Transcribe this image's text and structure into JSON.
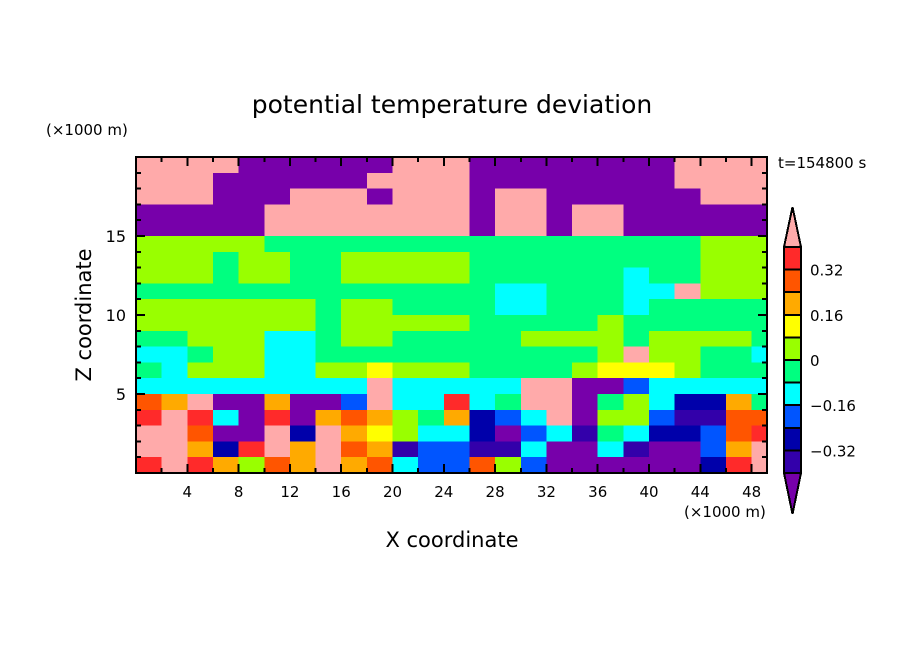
{
  "chart_data": {
    "type": "heatmap",
    "title": "potential temperature deviation",
    "xlabel": "X coordinate",
    "ylabel": "Z coordinate",
    "x_unit": "(×1000 m)",
    "y_unit": "(×1000 m)",
    "annotation": "t=154800 s",
    "xlim": [
      0,
      49.2
    ],
    "ylim": [
      0,
      20
    ],
    "xticks": [
      4,
      8,
      12,
      16,
      20,
      24,
      28,
      32,
      36,
      40,
      44,
      48
    ],
    "yticks": [
      5,
      10,
      15
    ],
    "levels": [
      -0.4,
      -0.32,
      -0.24,
      -0.16,
      -0.08,
      0,
      0.08,
      0.16,
      0.24,
      0.32,
      0.4
    ],
    "colors": [
      "#7700aa",
      "#3300aa",
      "#0000aa",
      "#0055ff",
      "#00ffff",
      "#00ff80",
      "#99ff00",
      "#ffff00",
      "#ffaa00",
      "#ff5500",
      "#ff2a2a",
      "#ffaaaa"
    ],
    "colorbar": {
      "labels": [
        "0.32",
        "0.16",
        "0",
        "−0.16",
        "−0.32"
      ],
      "label_values": [
        0.32,
        0.16,
        0,
        -0.16,
        -0.32
      ],
      "extend": "both"
    },
    "x_cell_size": 2,
    "z_cell_size": 1,
    "x_centers": [
      1,
      3,
      5,
      7,
      9,
      11,
      13,
      15,
      17,
      19,
      21,
      23,
      25,
      27,
      29,
      31,
      33,
      35,
      37,
      39,
      41,
      43,
      45,
      47,
      49
    ],
    "z_centers": [
      19.5,
      18.5,
      17.5,
      16.5,
      15.5,
      14.5,
      13.5,
      12.5,
      11.5,
      10.5,
      9.5,
      8.5,
      7.5,
      6.5,
      5.5,
      4.5,
      3.5,
      2.5,
      1.5,
      0.5
    ],
    "values": [
      [
        0.45,
        0.45,
        0.45,
        0.45,
        -0.45,
        -0.45,
        -0.45,
        -0.45,
        -0.45,
        -0.45,
        0.45,
        0.45,
        0.45,
        -0.45,
        -0.45,
        -0.45,
        -0.45,
        -0.45,
        -0.45,
        -0.45,
        -0.45,
        0.45,
        0.45,
        0.45,
        0.45
      ],
      [
        0.45,
        0.45,
        0.45,
        -0.45,
        -0.45,
        -0.45,
        -0.45,
        -0.45,
        -0.45,
        0.45,
        0.45,
        0.45,
        0.45,
        -0.45,
        -0.45,
        -0.45,
        -0.45,
        -0.45,
        -0.45,
        -0.45,
        -0.45,
        0.45,
        0.45,
        0.45,
        0.45
      ],
      [
        0.45,
        0.45,
        0.45,
        -0.45,
        -0.45,
        -0.45,
        0.45,
        0.45,
        0.45,
        -0.45,
        0.45,
        0.45,
        0.45,
        -0.45,
        0.45,
        0.45,
        -0.45,
        -0.45,
        -0.45,
        -0.45,
        -0.45,
        -0.45,
        0.45,
        0.45,
        0.45
      ],
      [
        -0.45,
        -0.45,
        -0.45,
        -0.45,
        -0.45,
        0.45,
        0.45,
        0.45,
        0.45,
        0.45,
        0.45,
        0.45,
        0.45,
        -0.45,
        0.45,
        0.45,
        -0.45,
        0.45,
        0.45,
        -0.45,
        -0.45,
        -0.45,
        -0.45,
        -0.45,
        -0.45
      ],
      [
        -0.45,
        -0.45,
        -0.45,
        -0.45,
        -0.45,
        0.45,
        0.45,
        0.45,
        0.45,
        0.45,
        0.45,
        0.45,
        0.45,
        -0.45,
        0.45,
        0.45,
        -0.45,
        0.45,
        0.45,
        -0.45,
        -0.45,
        -0.45,
        -0.45,
        -0.45,
        -0.45
      ],
      [
        0.04,
        0.04,
        0.04,
        0.04,
        0.04,
        -0.04,
        -0.04,
        -0.04,
        -0.04,
        -0.04,
        -0.04,
        -0.04,
        -0.04,
        -0.04,
        -0.04,
        -0.04,
        -0.04,
        -0.04,
        -0.04,
        -0.04,
        -0.04,
        -0.04,
        0.04,
        0.04,
        0.04
      ],
      [
        0.04,
        0.04,
        0.04,
        -0.04,
        0.04,
        0.04,
        -0.04,
        -0.04,
        0.04,
        0.04,
        0.04,
        0.04,
        0.04,
        -0.04,
        -0.04,
        -0.04,
        -0.04,
        -0.04,
        -0.04,
        -0.04,
        -0.04,
        -0.04,
        0.04,
        0.04,
        0.04
      ],
      [
        0.04,
        0.04,
        0.04,
        -0.04,
        0.04,
        0.04,
        -0.04,
        -0.04,
        0.04,
        0.04,
        0.04,
        0.04,
        0.04,
        -0.04,
        -0.04,
        -0.04,
        -0.04,
        -0.04,
        -0.04,
        -0.12,
        -0.04,
        -0.04,
        0.04,
        0.04,
        0.04
      ],
      [
        -0.04,
        -0.04,
        -0.04,
        -0.04,
        -0.04,
        -0.04,
        -0.04,
        -0.04,
        -0.04,
        -0.04,
        -0.04,
        -0.04,
        -0.04,
        -0.04,
        -0.12,
        -0.12,
        -0.04,
        -0.04,
        -0.04,
        -0.12,
        -0.12,
        0.45,
        0.04,
        0.04,
        0.04
      ],
      [
        0.04,
        0.04,
        0.04,
        0.04,
        0.04,
        0.04,
        0.04,
        -0.04,
        0.04,
        0.04,
        -0.04,
        -0.04,
        -0.04,
        -0.04,
        -0.12,
        -0.12,
        -0.04,
        -0.04,
        -0.04,
        -0.12,
        -0.04,
        -0.04,
        -0.04,
        -0.04,
        -0.04
      ],
      [
        0.04,
        0.04,
        0.04,
        0.04,
        0.04,
        0.04,
        0.04,
        -0.04,
        0.04,
        0.04,
        0.04,
        0.04,
        0.04,
        -0.04,
        -0.04,
        -0.04,
        -0.04,
        -0.04,
        0.04,
        -0.04,
        -0.04,
        -0.04,
        -0.04,
        -0.04,
        -0.04
      ],
      [
        -0.04,
        -0.04,
        0.04,
        0.04,
        0.04,
        -0.12,
        -0.12,
        -0.04,
        0.04,
        0.04,
        -0.04,
        -0.04,
        -0.04,
        -0.04,
        -0.04,
        0.04,
        0.04,
        0.04,
        0.04,
        -0.04,
        0.04,
        0.04,
        0.04,
        0.04,
        -0.04
      ],
      [
        -0.12,
        -0.12,
        -0.04,
        0.04,
        0.04,
        -0.12,
        -0.12,
        -0.04,
        -0.04,
        -0.04,
        -0.04,
        -0.04,
        -0.04,
        -0.04,
        -0.04,
        -0.04,
        -0.04,
        -0.04,
        0.04,
        0.45,
        0.04,
        0.04,
        -0.04,
        -0.04,
        -0.12
      ],
      [
        -0.04,
        -0.12,
        0.04,
        0.04,
        0.04,
        -0.12,
        -0.12,
        0.04,
        0.04,
        0.12,
        0.04,
        0.04,
        0.04,
        -0.04,
        -0.04,
        -0.04,
        -0.04,
        0.04,
        0.12,
        0.12,
        0.12,
        0.04,
        -0.04,
        -0.04,
        -0.04
      ],
      [
        -0.12,
        -0.12,
        -0.12,
        -0.12,
        -0.12,
        -0.12,
        -0.12,
        -0.12,
        -0.12,
        0.45,
        -0.12,
        -0.12,
        -0.12,
        -0.12,
        -0.12,
        0.45,
        0.45,
        -0.45,
        -0.45,
        -0.2,
        -0.12,
        -0.12,
        -0.12,
        -0.12,
        -0.12
      ],
      [
        0.28,
        0.2,
        0.45,
        -0.45,
        -0.45,
        0.2,
        -0.45,
        -0.45,
        -0.2,
        0.45,
        -0.12,
        -0.12,
        0.36,
        -0.12,
        -0.04,
        0.45,
        0.45,
        -0.45,
        -0.04,
        0.04,
        -0.12,
        -0.28,
        -0.28,
        0.2,
        -0.04
      ],
      [
        0.36,
        0.45,
        0.36,
        -0.12,
        -0.45,
        0.36,
        -0.45,
        0.2,
        0.28,
        0.2,
        0.04,
        -0.04,
        0.2,
        -0.28,
        -0.2,
        -0.12,
        0.45,
        -0.45,
        0.04,
        0.04,
        -0.2,
        -0.36,
        -0.36,
        0.28,
        0.28
      ],
      [
        0.45,
        0.45,
        0.28,
        -0.45,
        -0.45,
        0.45,
        -0.28,
        0.45,
        0.2,
        0.12,
        0.04,
        -0.12,
        -0.12,
        -0.28,
        -0.45,
        -0.2,
        -0.12,
        -0.36,
        -0.04,
        -0.12,
        -0.28,
        -0.28,
        -0.2,
        0.28,
        0.36
      ],
      [
        0.45,
        0.45,
        0.2,
        -0.28,
        0.36,
        0.45,
        0.2,
        0.45,
        0.28,
        0.2,
        -0.36,
        -0.2,
        -0.2,
        -0.36,
        -0.36,
        -0.12,
        -0.45,
        -0.45,
        -0.12,
        -0.36,
        -0.45,
        -0.45,
        -0.2,
        0.2,
        0.45
      ],
      [
        0.36,
        0.45,
        0.36,
        0.2,
        0.04,
        0.28,
        0.2,
        0.45,
        0.2,
        0.28,
        -0.12,
        -0.2,
        -0.2,
        0.28,
        0.04,
        -0.2,
        -0.45,
        -0.45,
        -0.45,
        -0.45,
        -0.45,
        -0.45,
        -0.28,
        0.36,
        0.45
      ]
    ]
  }
}
